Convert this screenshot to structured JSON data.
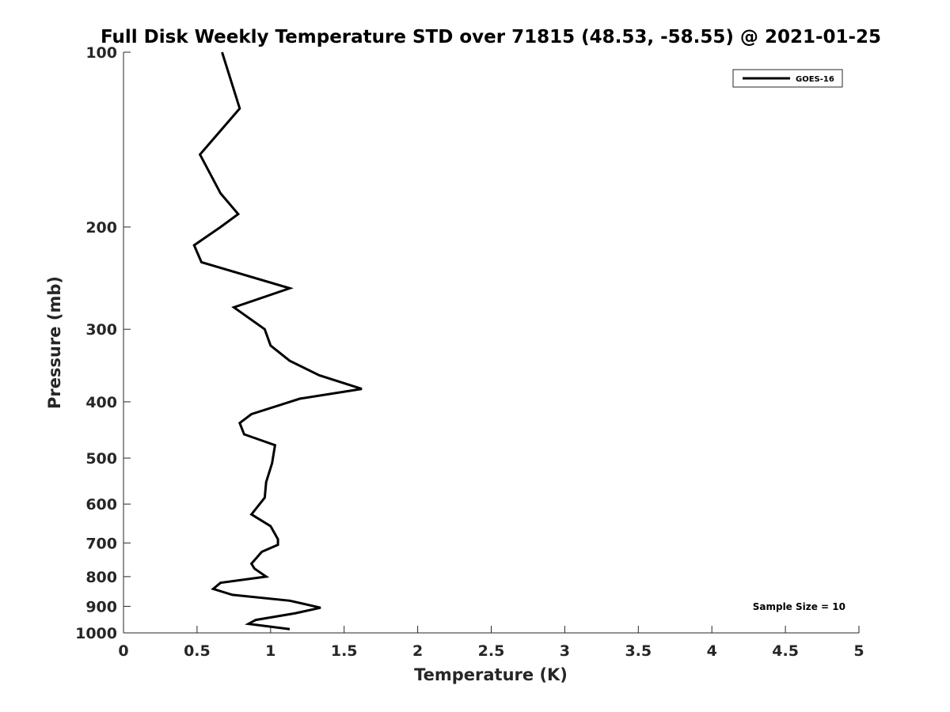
{
  "chart_data": {
    "type": "line",
    "title": "Full Disk Weekly Temperature STD over 71815 (48.53, -58.55) @ 2021-01-25",
    "xlabel": "Temperature (K)",
    "ylabel": "Pressure (mb)",
    "xlim": [
      0,
      5
    ],
    "ylim": [
      100,
      1000
    ],
    "yscale": "log",
    "y_reversed": true,
    "xticks": [
      0,
      0.5,
      1,
      1.5,
      2,
      2.5,
      3,
      3.5,
      4,
      4.5,
      5
    ],
    "xtick_labels": [
      "0",
      "0.5",
      "1",
      "1.5",
      "2",
      "2.5",
      "3",
      "3.5",
      "4",
      "4.5",
      "5"
    ],
    "yticks": [
      100,
      200,
      300,
      400,
      500,
      600,
      700,
      800,
      900,
      1000
    ],
    "ytick_labels": [
      "100",
      "200",
      "300",
      "400",
      "500",
      "600",
      "700",
      "800",
      "900",
      "1000"
    ],
    "grid": false,
    "legend_position": "top-right",
    "annotation": "Sample Size = 10",
    "line_color": "#000000",
    "series": [
      {
        "name": "GOES-16",
        "points": [
          {
            "x": 0.67,
            "y": 100
          },
          {
            "x": 0.79,
            "y": 125
          },
          {
            "x": 0.52,
            "y": 150
          },
          {
            "x": 0.66,
            "y": 175
          },
          {
            "x": 0.78,
            "y": 190
          },
          {
            "x": 0.66,
            "y": 200
          },
          {
            "x": 0.48,
            "y": 215
          },
          {
            "x": 0.53,
            "y": 230
          },
          {
            "x": 1.13,
            "y": 255
          },
          {
            "x": 0.75,
            "y": 275
          },
          {
            "x": 0.96,
            "y": 300
          },
          {
            "x": 1.0,
            "y": 320
          },
          {
            "x": 1.13,
            "y": 340
          },
          {
            "x": 1.33,
            "y": 360
          },
          {
            "x": 1.62,
            "y": 380
          },
          {
            "x": 1.2,
            "y": 395
          },
          {
            "x": 0.87,
            "y": 420
          },
          {
            "x": 0.79,
            "y": 435
          },
          {
            "x": 0.82,
            "y": 455
          },
          {
            "x": 1.03,
            "y": 475
          },
          {
            "x": 1.01,
            "y": 510
          },
          {
            "x": 0.97,
            "y": 550
          },
          {
            "x": 0.96,
            "y": 585
          },
          {
            "x": 0.87,
            "y": 625
          },
          {
            "x": 1.0,
            "y": 655
          },
          {
            "x": 1.05,
            "y": 690
          },
          {
            "x": 1.05,
            "y": 705
          },
          {
            "x": 0.94,
            "y": 725
          },
          {
            "x": 0.87,
            "y": 760
          },
          {
            "x": 0.89,
            "y": 775
          },
          {
            "x": 0.97,
            "y": 800
          },
          {
            "x": 0.66,
            "y": 820
          },
          {
            "x": 0.61,
            "y": 840
          },
          {
            "x": 0.74,
            "y": 860
          },
          {
            "x": 1.13,
            "y": 880
          },
          {
            "x": 1.34,
            "y": 905
          },
          {
            "x": 1.17,
            "y": 925
          },
          {
            "x": 0.9,
            "y": 950
          },
          {
            "x": 0.85,
            "y": 965
          },
          {
            "x": 1.13,
            "y": 985
          }
        ]
      }
    ]
  }
}
